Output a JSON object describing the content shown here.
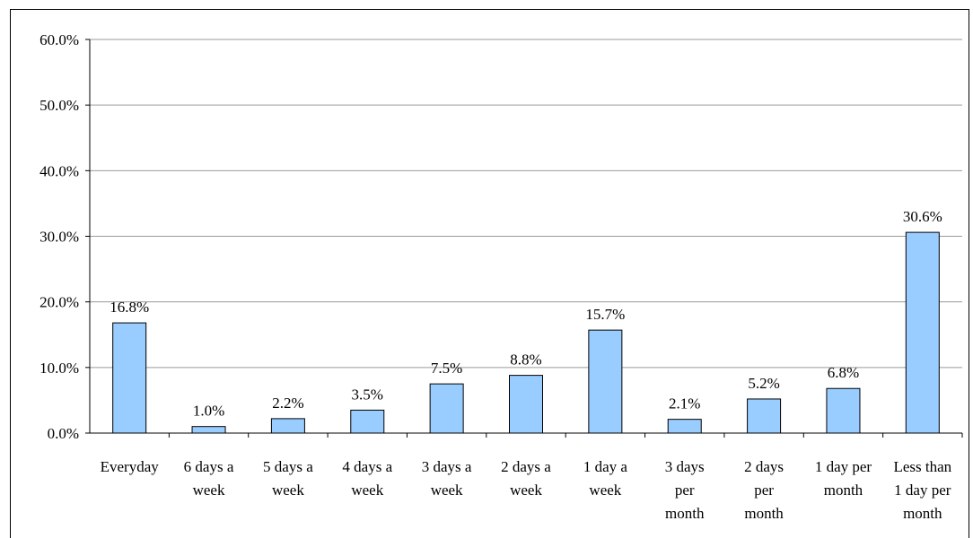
{
  "chart_data": {
    "type": "bar",
    "title": "",
    "xlabel": "",
    "ylabel": "",
    "ylim": [
      0,
      60
    ],
    "yticks": [
      "0.0%",
      "10.0%",
      "20.0%",
      "30.0%",
      "40.0%",
      "50.0%",
      "60.0%"
    ],
    "ytick_values": [
      0,
      10,
      20,
      30,
      40,
      50,
      60
    ],
    "grid": true,
    "legend": "none",
    "bar_color": "#99ccff",
    "bar_edge_color": "#000000",
    "categories": [
      [
        "Everyday"
      ],
      [
        "6 days a",
        "week"
      ],
      [
        "5 days a",
        "week"
      ],
      [
        "4 days a",
        "week"
      ],
      [
        "3 days a",
        "week"
      ],
      [
        "2 days a",
        "week"
      ],
      [
        "1 day a",
        "week"
      ],
      [
        "3 days",
        "per",
        "month"
      ],
      [
        "2 days",
        "per",
        "month"
      ],
      [
        "1 day per",
        "month"
      ],
      [
        "Less than",
        "1 day per",
        "month"
      ]
    ],
    "values": [
      16.8,
      1.0,
      2.2,
      3.5,
      7.5,
      8.8,
      15.7,
      2.1,
      5.2,
      6.8,
      30.6
    ],
    "data_labels": [
      "16.8%",
      "1.0%",
      "2.2%",
      "3.5%",
      "7.5%",
      "8.8%",
      "15.7%",
      "2.1%",
      "5.2%",
      "6.8%",
      "30.6%"
    ]
  }
}
